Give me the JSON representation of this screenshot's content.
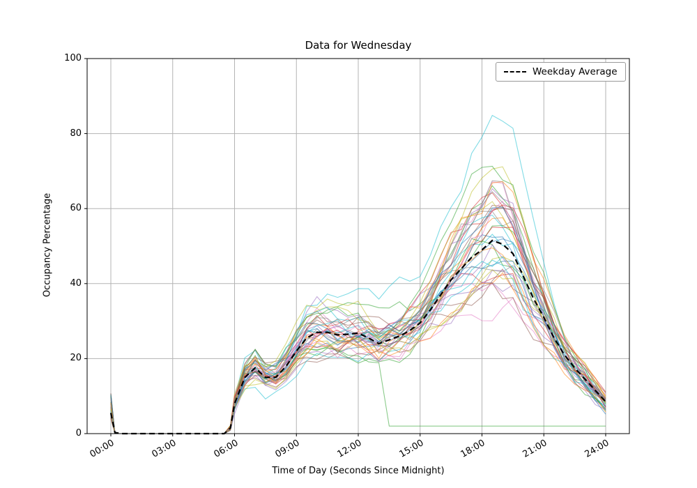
{
  "chart_data": {
    "type": "line",
    "title": "Data for Wednesday",
    "xlabel": "Time of Day (Seconds Since Midnight)",
    "ylabel": "Occupancy Percentage",
    "ylim": [
      0,
      100
    ],
    "grid": true,
    "background": "#ffffff",
    "grid_color": "#b3b3b3",
    "legend": {
      "label": "Weekday Average",
      "position": "top-right"
    },
    "x_ticks": {
      "hours": [
        0,
        3,
        6,
        9,
        12,
        15,
        18,
        21,
        24
      ],
      "labels": [
        "00:00",
        "03:00",
        "06:00",
        "09:00",
        "12:00",
        "15:00",
        "18:00",
        "21:00",
        "24:00"
      ]
    },
    "y_ticks": [
      0,
      20,
      40,
      60,
      80,
      100
    ],
    "average_series": {
      "name": "Weekday Average",
      "color": "#000000",
      "dashed": true,
      "x_hours": [
        0,
        0.2,
        0.5,
        1,
        1.5,
        2,
        2.5,
        3,
        3.5,
        4,
        4.5,
        5,
        5.5,
        5.8,
        6,
        6.5,
        7,
        7.5,
        8,
        8.5,
        9,
        9.5,
        10,
        10.5,
        11,
        11.5,
        12,
        12.5,
        13,
        13.5,
        14,
        14.5,
        15,
        15.5,
        16,
        16.5,
        17,
        17.5,
        18,
        18.5,
        19,
        19.5,
        20,
        20.5,
        21,
        21.5,
        22,
        22.5,
        23,
        23.5,
        24
      ],
      "values": [
        5.5,
        0.3,
        0,
        0,
        0,
        0,
        0,
        0,
        0,
        0,
        0,
        0,
        0,
        1.5,
        8,
        15,
        17.5,
        15,
        15,
        18,
        22,
        25.5,
        27,
        27,
        26.3,
        26.5,
        26.8,
        25.5,
        24,
        25,
        26,
        27.5,
        29.5,
        33,
        37,
        41,
        44,
        47,
        49,
        51.5,
        50.5,
        48,
        42,
        36,
        31,
        25.5,
        21,
        17.5,
        14.5,
        11.5,
        8.5
      ]
    },
    "individual_lines": {
      "count": 42,
      "seed": 7,
      "opacity": 0.55,
      "stroke_width": 1.1,
      "noise": 5.5,
      "peak_scale_min": 0.72,
      "peak_scale_max": 1.38,
      "start_spike_min": 4,
      "start_spike_max": 11,
      "outlier": {
        "peak_scale": 1.72,
        "color": "#17becf"
      },
      "dropout": {
        "after_hour": 13.5,
        "value": 2,
        "color": "#2ca02c"
      },
      "palette": [
        "#1f77b4",
        "#ff7f0e",
        "#2ca02c",
        "#d62728",
        "#9467bd",
        "#8c564b",
        "#e377c2",
        "#7f7f7f",
        "#bcbd22",
        "#17becf"
      ]
    }
  }
}
